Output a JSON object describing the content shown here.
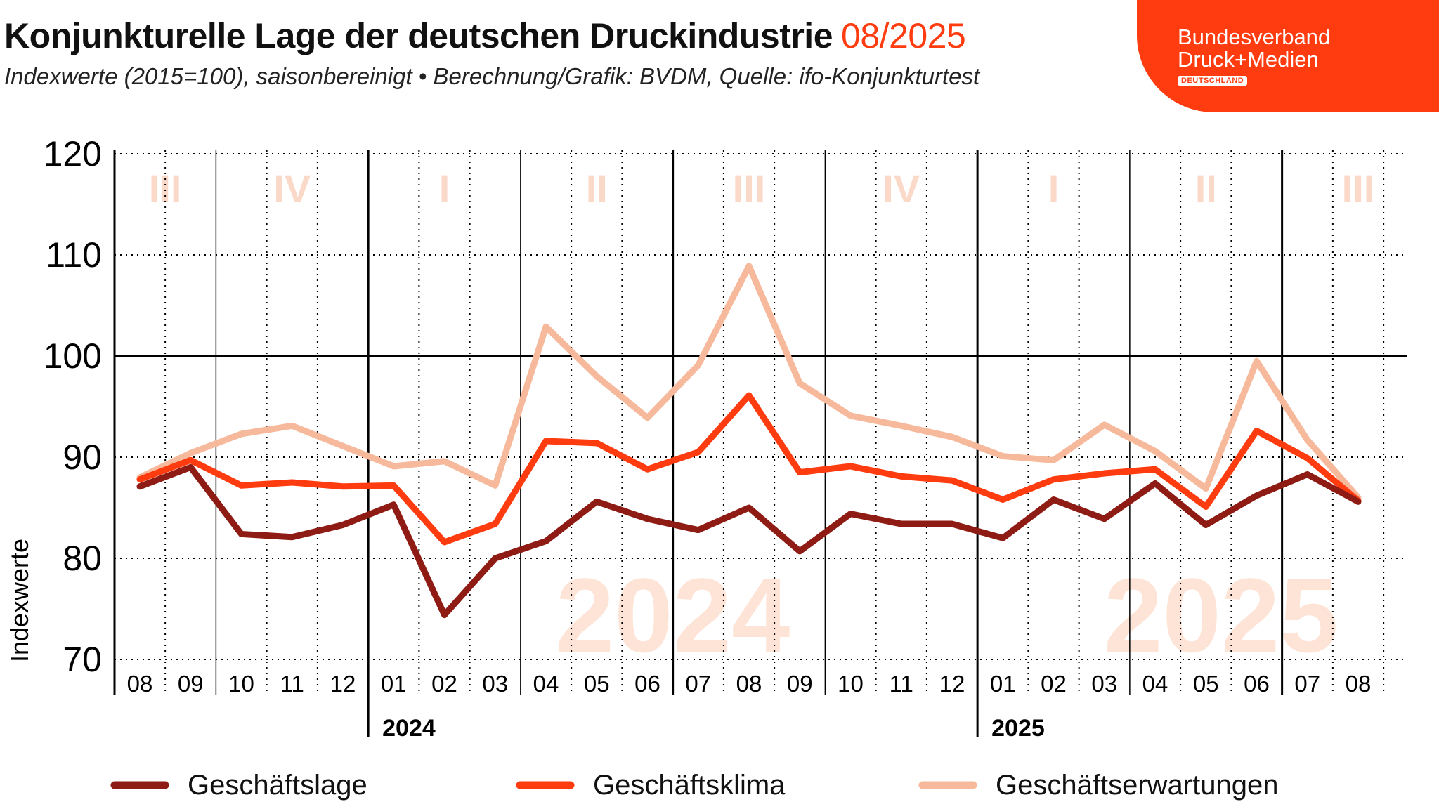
{
  "header": {
    "title": "Konjunkturelle Lage der deutschen Druckindustrie",
    "period": "08/2025",
    "subtitle": "Indexwerte (2015=100), saisonbereinigt • Berechnung/Grafik: BVDM, Quelle: ifo-Konjunkturtest"
  },
  "logo": {
    "line1": "Bundesverband",
    "line2": "Druck+Medien",
    "badge": "DEUTSCHLAND",
    "color": "#ff3c0f"
  },
  "chart_data": {
    "type": "line",
    "title": "Konjunkturelle Lage der deutschen Druckindustrie 08/2025",
    "ylabel": "Indexwerte",
    "xlabel": "",
    "ylim": [
      70,
      120
    ],
    "yticks": [
      70,
      80,
      90,
      100,
      110,
      120
    ],
    "grid": true,
    "legend_position": "bottom",
    "categories": [
      "08",
      "09",
      "10",
      "11",
      "12",
      "01",
      "02",
      "03",
      "04",
      "05",
      "06",
      "07",
      "08",
      "09",
      "10",
      "11",
      "12",
      "01",
      "02",
      "03",
      "04",
      "05",
      "06",
      "07",
      "08"
    ],
    "year_labels": [
      {
        "label": "2024",
        "start_index": 5
      },
      {
        "label": "2025",
        "start_index": 17
      }
    ],
    "quarter_labels": [
      {
        "label": "III",
        "index": 0.5
      },
      {
        "label": "IV",
        "index": 3
      },
      {
        "label": "I",
        "index": 6
      },
      {
        "label": "II",
        "index": 9
      },
      {
        "label": "III",
        "index": 12
      },
      {
        "label": "IV",
        "index": 15
      },
      {
        "label": "I",
        "index": 18
      },
      {
        "label": "II",
        "index": 21
      },
      {
        "label": "III",
        "index": 24
      }
    ],
    "watermarks": [
      {
        "label": "2024",
        "index": 10.5
      },
      {
        "label": "2025",
        "index": 21.3
      }
    ],
    "series": [
      {
        "name": "Geschäftslage",
        "color": "#8e1c14",
        "values": [
          87.1,
          89.0,
          82.4,
          82.1,
          83.3,
          85.3,
          74.4,
          80.0,
          81.7,
          85.6,
          83.9,
          82.8,
          85.0,
          80.7,
          84.4,
          83.4,
          83.4,
          82.0,
          85.8,
          83.9,
          87.4,
          83.3,
          86.2,
          88.3,
          85.6
        ]
      },
      {
        "name": "Geschäftsklima",
        "color": "#ff3c0f",
        "values": [
          87.8,
          89.7,
          87.2,
          87.5,
          87.1,
          87.2,
          81.6,
          83.4,
          91.6,
          91.4,
          88.8,
          90.5,
          96.1,
          88.5,
          89.1,
          88.1,
          87.7,
          85.8,
          87.8,
          88.4,
          88.8,
          85.1,
          92.6,
          89.9,
          85.7
        ]
      },
      {
        "name": "Geschäftserwartungen",
        "color": "#f7b99c",
        "values": [
          88.0,
          90.4,
          92.3,
          93.1,
          91.1,
          89.1,
          89.6,
          87.2,
          102.9,
          98.0,
          93.9,
          99.1,
          108.9,
          97.3,
          94.1,
          93.1,
          92.0,
          90.1,
          89.7,
          93.2,
          90.6,
          86.9,
          99.5,
          91.7,
          86.0
        ]
      }
    ]
  }
}
